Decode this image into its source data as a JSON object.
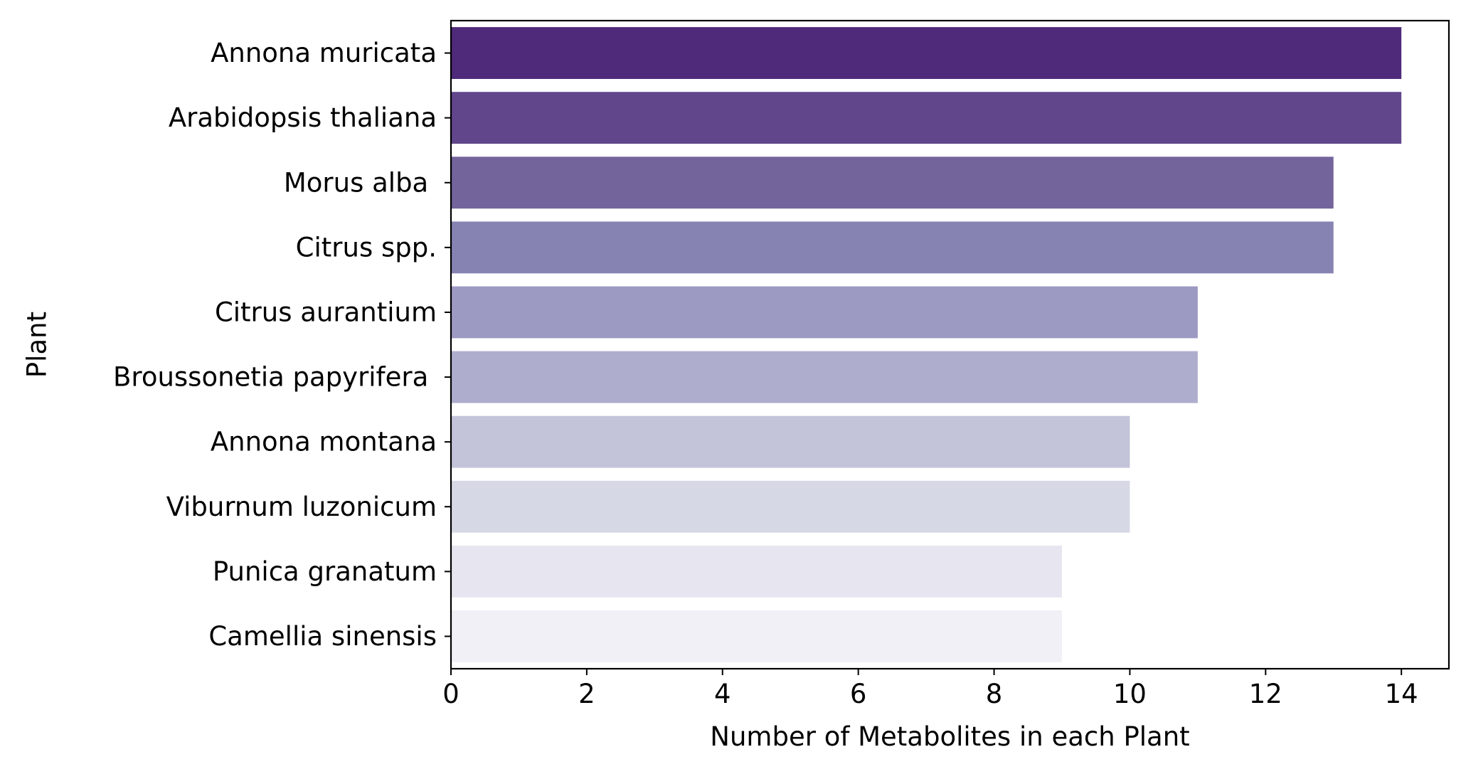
{
  "chart_data": {
    "type": "bar",
    "orientation": "horizontal",
    "title": "",
    "xlabel": "Number of Metabolites in each Plant",
    "ylabel": "Plant",
    "xlim": [
      0,
      14.7
    ],
    "xticks": [
      0,
      2,
      4,
      6,
      8,
      10,
      12,
      14
    ],
    "grid": false,
    "categories": [
      "Annona muricata",
      "Arabidopsis thaliana",
      "Morus alba ",
      "Citrus spp.",
      "Citrus aurantium",
      "Broussonetia papyrifera ",
      "Annona montana",
      "Viburnum luzonicum",
      "Punica granatum",
      "Camellia sinensis"
    ],
    "values": [
      14,
      14,
      13,
      13,
      11,
      11,
      10,
      10,
      9,
      9
    ],
    "colors": [
      "#4f2a7a",
      "#61468c",
      "#73649c",
      "#8683b3",
      "#9c99c3",
      "#aeadcd",
      "#c3c3da",
      "#d7d8e6",
      "#e7e6f0",
      "#f1f0f6"
    ]
  }
}
